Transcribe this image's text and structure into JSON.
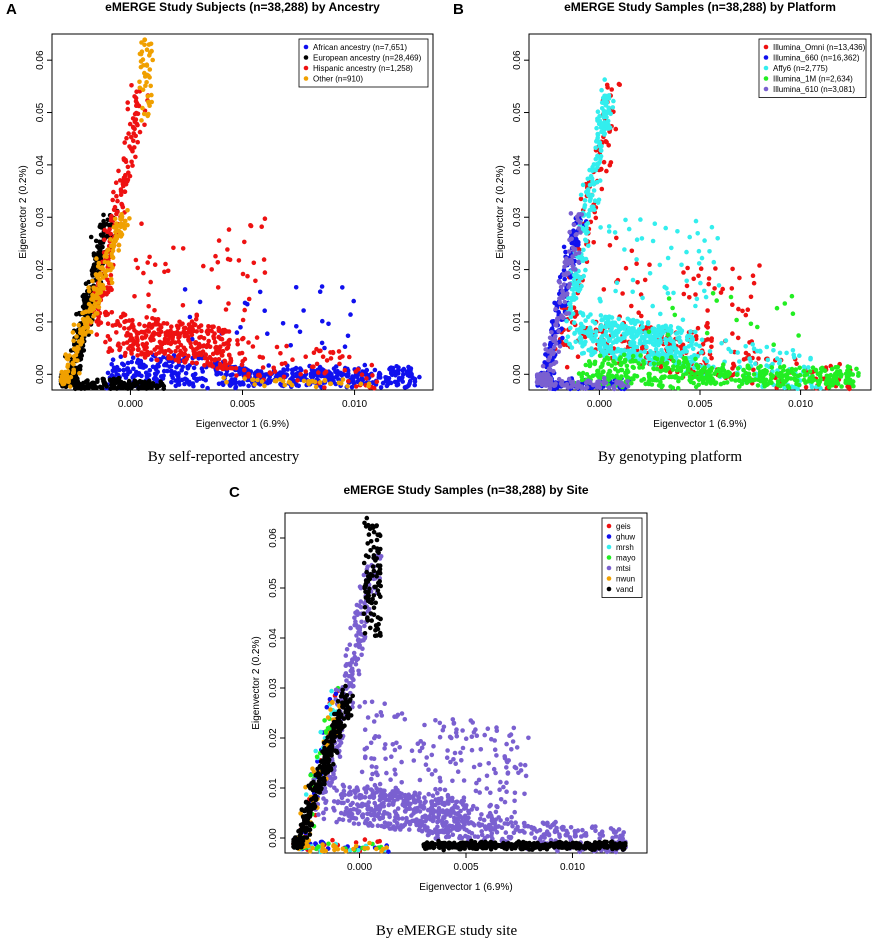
{
  "chart_data": [
    {
      "panel_label": "A",
      "type": "scatter",
      "title": "eMERGE Study Subjects (n=38,288) by Ancestry",
      "xlabel": "Eigenvector 1 (6.9%)",
      "ylabel": "Eigenvector 2 (0.2%)",
      "xlim": [
        -0.0035,
        0.0135
      ],
      "ylim": [
        -0.003,
        0.065
      ],
      "x_ticks": [
        0.0,
        0.005,
        0.01
      ],
      "x_tick_labels": [
        "0.000",
        "0.005",
        "0.010"
      ],
      "y_ticks": [
        0.0,
        0.01,
        0.02,
        0.03,
        0.04,
        0.05,
        0.06
      ],
      "y_tick_labels": [
        "0.00",
        "0.01",
        "0.02",
        "0.03",
        "0.04",
        "0.05",
        "0.06"
      ],
      "legend_position": "top-right",
      "caption": "By self-reported ancestry",
      "series": [
        {
          "name": "African ancestry (n=7,651)",
          "color": "#1010ee",
          "pattern": "admixed",
          "weight": 0.22,
          "count": 7651
        },
        {
          "name": "European ancestry (n=28,469)",
          "color": "#000000",
          "pattern": "european",
          "weight": 0.42,
          "count": 28469
        },
        {
          "name": "Hispanic ancestry (n=1,258)",
          "color": "#ee1111",
          "pattern": "hispanic",
          "weight": 0.24,
          "count": 1258
        },
        {
          "name": "Other (n=910)",
          "color": "#f0a000",
          "pattern": "other",
          "weight": 0.12,
          "count": 910
        }
      ]
    },
    {
      "panel_label": "B",
      "type": "scatter",
      "title": "eMERGE Study Samples (n=38,288) by Platform",
      "xlabel": "Eigenvector 1 (6.9%)",
      "ylabel": "Eigenvector 2 (0.2%)",
      "xlim": [
        -0.0035,
        0.0135
      ],
      "ylim": [
        -0.003,
        0.065
      ],
      "x_ticks": [
        0.0,
        0.005,
        0.01
      ],
      "x_tick_labels": [
        "0.000",
        "0.005",
        "0.010"
      ],
      "y_ticks": [
        0.0,
        0.01,
        0.02,
        0.03,
        0.04,
        0.05,
        0.06
      ],
      "y_tick_labels": [
        "0.00",
        "0.01",
        "0.02",
        "0.03",
        "0.04",
        "0.05",
        "0.06"
      ],
      "legend_position": "top-right",
      "caption": "By genotyping platform",
      "series": [
        {
          "name": "Illumina_Omni (n=13,436)",
          "color": "#ee1111",
          "pattern": "mixed",
          "weight": 0.15,
          "count": 13436
        },
        {
          "name": "Illumina_660 (n=16,362)",
          "color": "#1010ee",
          "pattern": "european",
          "weight": 0.22,
          "count": 16362
        },
        {
          "name": "Affy6 (n=2,775)",
          "color": "#33eeee",
          "pattern": "hispanic",
          "weight": 0.3,
          "count": 2775
        },
        {
          "name": "Illumina_1M (n=2,634)",
          "color": "#22ee22",
          "pattern": "admixed",
          "weight": 0.18,
          "count": 2634
        },
        {
          "name": "Illumina_610 (n=3,081)",
          "color": "#7a60d0",
          "pattern": "european",
          "weight": 0.15,
          "count": 3081
        }
      ]
    },
    {
      "panel_label": "C",
      "type": "scatter",
      "title": "eMERGE Study Samples (n=38,288) by Site",
      "xlabel": "Eigenvector 1 (6.9%)",
      "ylabel": "Eigenvector 2 (0.2%)",
      "xlim": [
        -0.0035,
        0.0135
      ],
      "ylim": [
        -0.003,
        0.065
      ],
      "x_ticks": [
        0.0,
        0.005,
        0.01
      ],
      "x_tick_labels": [
        "0.000",
        "0.005",
        "0.010"
      ],
      "y_ticks": [
        0.0,
        0.01,
        0.02,
        0.03,
        0.04,
        0.05,
        0.06
      ],
      "y_tick_labels": [
        "0.00",
        "0.01",
        "0.02",
        "0.03",
        "0.04",
        "0.05",
        "0.06"
      ],
      "legend_position": "top-right",
      "caption": "By eMERGE study site",
      "series": [
        {
          "name": "geis",
          "color": "#ee1111",
          "pattern": "european",
          "weight": 0.04
        },
        {
          "name": "ghuw",
          "color": "#1010ee",
          "pattern": "european",
          "weight": 0.04
        },
        {
          "name": "mrsh",
          "color": "#33eeee",
          "pattern": "european",
          "weight": 0.03
        },
        {
          "name": "mayo",
          "color": "#22ee22",
          "pattern": "european",
          "weight": 0.03
        },
        {
          "name": "mtsi",
          "color": "#7a60d0",
          "pattern": "mixed",
          "weight": 0.42
        },
        {
          "name": "nwun",
          "color": "#f0a000",
          "pattern": "european",
          "weight": 0.06
        },
        {
          "name": "vand",
          "color": "#000000",
          "pattern": "vand",
          "weight": 0.38
        }
      ]
    }
  ]
}
